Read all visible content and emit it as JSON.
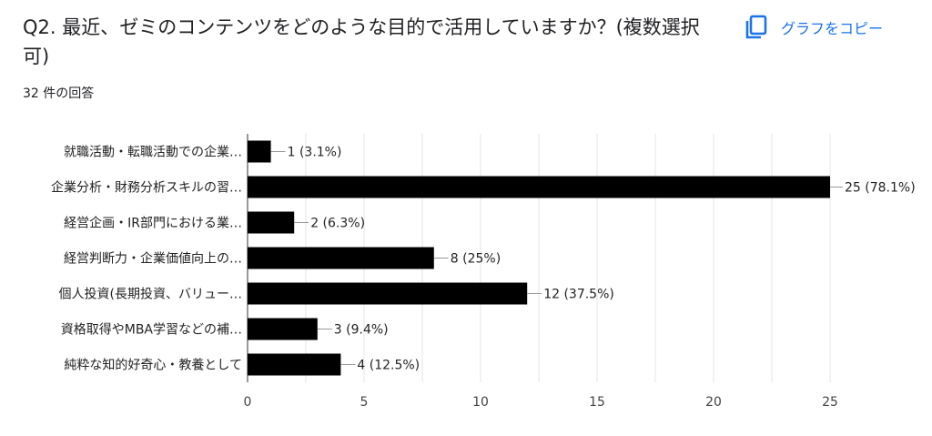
{
  "question": {
    "title": "Q2. 最近、ゼミのコンテンツをどのような目的で活用していますか？(複数選択可)",
    "response_count": "32 件の回答"
  },
  "actions": {
    "copy_label": "グラフをコピー",
    "copy_icon": "copy-icon"
  },
  "colors": {
    "bar": "#000000",
    "accent": "#1a73e8",
    "grid": "#e6e6e6"
  },
  "chart_data": {
    "type": "bar",
    "orientation": "horizontal",
    "categories": [
      "就職活動・転職活動での企業…",
      "企業分析・財務分析スキルの習…",
      "経営企画・IR部門における業…",
      "経営判断力・企業価値向上の…",
      "個人投資(長期投資、バリュー…",
      "資格取得やMBA学習などの補…",
      "純粋な知的好奇心・教養として"
    ],
    "values": [
      1,
      25,
      2,
      8,
      12,
      3,
      4
    ],
    "value_labels": [
      "1 (3.1%)",
      "25 (78.1%)",
      "2 (6.3%)",
      "8 (25%)",
      "12 (37.5%)",
      "3 (9.4%)",
      "4 (12.5%)"
    ],
    "xticks": [
      0,
      5,
      10,
      15,
      20,
      25
    ],
    "xlim": [
      0,
      25
    ],
    "grid": true
  }
}
